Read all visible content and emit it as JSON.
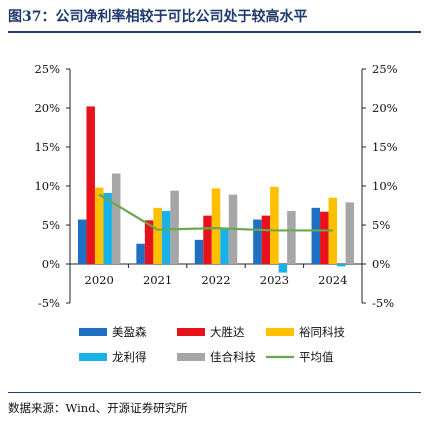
{
  "title": "图37：公司净利率相较于可比公司处于较高水平",
  "source": "数据来源：Wind、开源证券研究所",
  "chart_data": {
    "type": "bar",
    "categories": [
      "2020",
      "2021",
      "2022",
      "2023",
      "2024"
    ],
    "ylim": [
      -5,
      25
    ],
    "yticks": [
      "-5%",
      "0%",
      "5%",
      "10%",
      "15%",
      "20%",
      "25%"
    ],
    "ytick_values": [
      -5,
      0,
      5,
      10,
      15,
      20,
      25
    ],
    "grid": false,
    "legend_position": "bottom",
    "series": [
      {
        "name": "美盈森",
        "type": "bar",
        "color": "#1f6fc2",
        "values": [
          5.7,
          2.6,
          3.1,
          5.7,
          7.2
        ]
      },
      {
        "name": "大胜达",
        "type": "bar",
        "color": "#e8121c",
        "values": [
          20.2,
          5.6,
          6.2,
          6.2,
          6.7
        ]
      },
      {
        "name": "裕同科技",
        "type": "bar",
        "color": "#ffc000",
        "values": [
          9.8,
          7.2,
          9.7,
          9.9,
          8.5
        ]
      },
      {
        "name": "龙利得",
        "type": "bar",
        "color": "#19b2e8",
        "values": [
          9.1,
          6.8,
          4.6,
          -1.1,
          -0.3
        ]
      },
      {
        "name": "佳合科技",
        "type": "bar",
        "color": "#a6a6a6",
        "values": [
          11.6,
          9.4,
          8.9,
          6.8,
          7.9
        ]
      },
      {
        "name": "平均值",
        "type": "line",
        "color": "#6aa84f",
        "values": [
          8.9,
          4.4,
          4.6,
          4.3,
          4.3
        ]
      }
    ]
  }
}
